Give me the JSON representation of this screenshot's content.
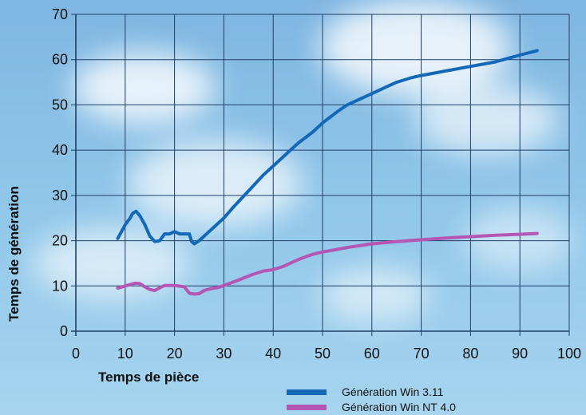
{
  "chart_data": {
    "type": "line",
    "title": "",
    "xlabel": "Temps de pièce",
    "ylabel": "Temps de génération",
    "xlim": [
      0,
      100
    ],
    "ylim": [
      0,
      70
    ],
    "xticks": [
      "0",
      "10",
      "20",
      "30",
      "40",
      "50",
      "60",
      "70",
      "80",
      "90",
      "100"
    ],
    "yticks": [
      "0",
      "10",
      "20",
      "30",
      "40",
      "50",
      "60",
      "70"
    ],
    "grid": true,
    "legend_position": "bottom-right",
    "colors": {
      "background_sky": "#8fc3e8",
      "grid": "#1f3f66"
    },
    "series": [
      {
        "name": "Génération Win 3.11",
        "color": "#1468b8",
        "x": [
          8.5,
          9.5,
          10,
          11,
          11.5,
          12.2,
          13,
          14,
          15,
          16,
          17,
          18,
          19,
          20,
          21,
          22,
          23,
          23.5,
          24,
          25,
          26,
          27,
          28,
          29,
          30,
          32,
          35,
          38,
          40,
          43,
          45,
          48,
          50,
          53,
          55,
          57,
          60,
          63,
          65,
          68,
          70,
          75,
          80,
          85,
          90,
          93.5
        ],
        "y": [
          20.5,
          22.5,
          23.5,
          25,
          26,
          26.5,
          25.5,
          23.5,
          21,
          19.8,
          20,
          21.5,
          21.5,
          22,
          21.5,
          21.5,
          21.5,
          19.8,
          19.3,
          20,
          21,
          22,
          23,
          24,
          25,
          27.5,
          31,
          34.5,
          36.5,
          39.5,
          41.5,
          44,
          46,
          48.5,
          50,
          51,
          52.5,
          54,
          55,
          56,
          56.5,
          57.5,
          58.5,
          59.5,
          61,
          62
        ],
        "values_note": ""
      },
      {
        "name": "Génération Win NT 4.0",
        "color": "#b456b4",
        "x": [
          8.5,
          10,
          11,
          12,
          13,
          14,
          15,
          16,
          17,
          18,
          20,
          22,
          23,
          24,
          25,
          26,
          27,
          28,
          29,
          30,
          33,
          36,
          38,
          40,
          42,
          45,
          48,
          50,
          55,
          60,
          65,
          70,
          75,
          80,
          85,
          90,
          93.5
        ],
        "y": [
          9.5,
          10,
          10.3,
          10.6,
          10.5,
          9.8,
          9.2,
          9.0,
          9.6,
          10.1,
          10.1,
          9.8,
          8.4,
          8.2,
          8.3,
          9.0,
          9.3,
          9.5,
          9.7,
          10.1,
          11.3,
          12.6,
          13.3,
          13.6,
          14.3,
          15.8,
          17.0,
          17.5,
          18.5,
          19.3,
          19.8,
          20.2,
          20.6,
          20.9,
          21.2,
          21.4,
          21.6
        ]
      }
    ]
  }
}
